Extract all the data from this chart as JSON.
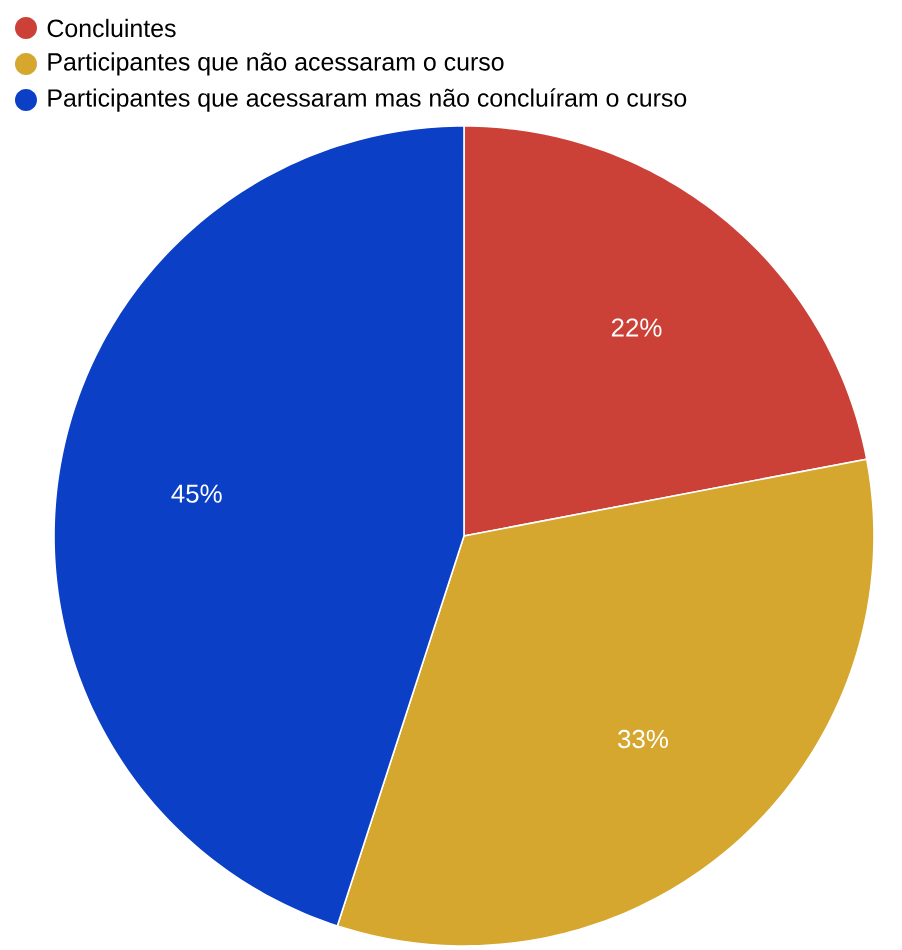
{
  "chart_data": {
    "type": "pie",
    "categories": [
      "Concluintes",
      "Participantes que não acessaram o curso",
      "Participantes que acessaram mas não concluíram o curso"
    ],
    "values": [
      22,
      33,
      45
    ],
    "colors": [
      "#cc4137",
      "#d5a72f",
      "#0b40c6"
    ],
    "value_labels": [
      "22%",
      "33%",
      "45%"
    ],
    "legend": "top left"
  }
}
